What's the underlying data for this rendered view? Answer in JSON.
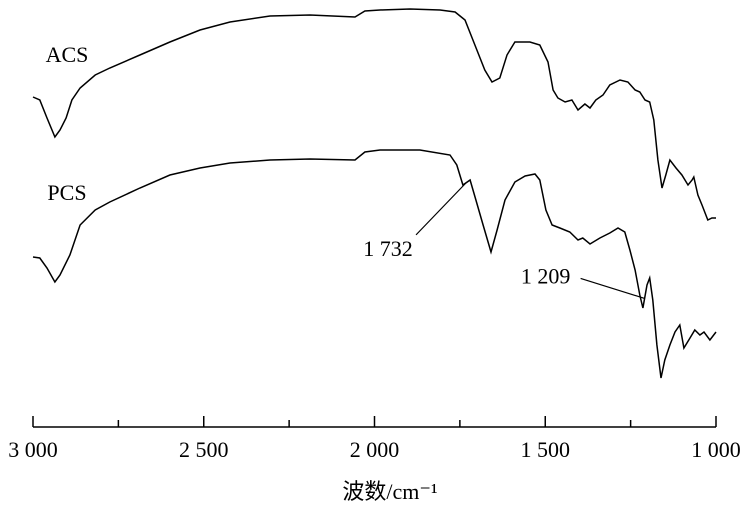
{
  "chart_data": {
    "type": "line",
    "x_label": "波数/cm⁻¹",
    "xlim": [
      3000,
      1000
    ],
    "xticks": [
      {
        "value": 3000,
        "label": "3 000"
      },
      {
        "value": 2500,
        "label": "2 500"
      },
      {
        "value": 2000,
        "label": "2 000"
      },
      {
        "value": 1500,
        "label": "1 500"
      },
      {
        "value": 1000,
        "label": "1 000"
      }
    ],
    "xminorticks": [
      2750,
      2250,
      1750,
      1250
    ],
    "ylim": [
      0,
      427
    ],
    "series": [
      {
        "name": "ACS",
        "color": "#000000",
        "x": [
          3000,
          2980,
          2959,
          2936,
          2921,
          2903,
          2886,
          2862,
          2818,
          2775,
          2687,
          2599,
          2511,
          2423,
          2306,
          2189,
          2057,
          2028,
          1984,
          1896,
          1808,
          1764,
          1735,
          1706,
          1677,
          1656,
          1633,
          1612,
          1589,
          1545,
          1516,
          1492,
          1477,
          1463,
          1442,
          1422,
          1404,
          1384,
          1369,
          1352,
          1331,
          1311,
          1281,
          1258,
          1237,
          1223,
          1208,
          1194,
          1182,
          1170,
          1158,
          1147,
          1135,
          1117,
          1100,
          1082,
          1070,
          1065,
          1053,
          1041,
          1024,
          1012,
          1000
        ],
        "values": [
          330,
          327,
          309,
          290,
          297,
          309,
          327,
          339,
          352,
          359,
          372,
          385,
          397,
          405,
          411,
          412,
          410,
          416,
          417,
          418,
          417,
          415,
          407,
          382,
          357,
          345,
          349,
          372,
          385,
          385,
          382,
          365,
          337,
          329,
          325,
          327,
          317,
          323,
          319,
          327,
          332,
          342,
          347,
          345,
          337,
          335,
          327,
          325,
          307,
          267,
          239,
          252,
          267,
          259,
          252,
          242,
          247,
          250,
          232,
          222,
          207,
          209,
          209
        ]
      },
      {
        "name": "PCS",
        "color": "#000000",
        "x": [
          3000,
          2980,
          2959,
          2936,
          2921,
          2892,
          2862,
          2818,
          2775,
          2687,
          2599,
          2511,
          2423,
          2306,
          2189,
          2057,
          2028,
          1984,
          1867,
          1779,
          1759,
          1741,
          1720,
          1703,
          1682,
          1659,
          1641,
          1618,
          1589,
          1559,
          1530,
          1516,
          1498,
          1480,
          1457,
          1428,
          1404,
          1390,
          1369,
          1340,
          1311,
          1287,
          1267,
          1252,
          1237,
          1223,
          1214,
          1202,
          1194,
          1185,
          1173,
          1161,
          1150,
          1135,
          1120,
          1106,
          1094,
          1076,
          1062,
          1047,
          1035,
          1018,
          1000
        ],
        "values": [
          170,
          169,
          159,
          145,
          152,
          172,
          202,
          217,
          225,
          239,
          252,
          259,
          264,
          267,
          268,
          267,
          275,
          277,
          277,
          272,
          262,
          242,
          247,
          227,
          202,
          175,
          197,
          227,
          245,
          251,
          253,
          247,
          217,
          202,
          199,
          195,
          187,
          189,
          183,
          189,
          194,
          199,
          195,
          177,
          157,
          132,
          119,
          142,
          149,
          127,
          82,
          49,
          67,
          82,
          95,
          102,
          79,
          89,
          97,
          92,
          95,
          87,
          95
        ]
      }
    ],
    "annotations": [
      {
        "value": 1732,
        "label": "1 732"
      },
      {
        "value": 1209,
        "label": "1 209"
      }
    ]
  }
}
